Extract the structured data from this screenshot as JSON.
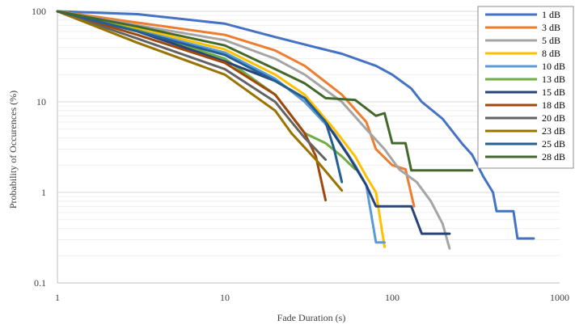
{
  "chart_data": {
    "type": "line",
    "title": "",
    "xlabel": "Fade Duration (s)",
    "ylabel": "Probability of Occurences (%)",
    "x_scale": "log",
    "y_scale": "log",
    "xlim": [
      1,
      1000
    ],
    "ylim": [
      0.1,
      100
    ],
    "x_ticks": [
      "1",
      "10",
      "100",
      "1000"
    ],
    "y_ticks": [
      "0.1",
      "1",
      "10",
      "100"
    ],
    "grid": true,
    "legend_position": "top-right",
    "series": [
      {
        "name": "1 dB",
        "color": "#4472C4",
        "points": [
          [
            1,
            100
          ],
          [
            3,
            93
          ],
          [
            10,
            73
          ],
          [
            20,
            52
          ],
          [
            30,
            43
          ],
          [
            50,
            34
          ],
          [
            80,
            25
          ],
          [
            100,
            20
          ],
          [
            130,
            14
          ],
          [
            150,
            10
          ],
          [
            200,
            6.5
          ],
          [
            260,
            3.5
          ],
          [
            300,
            2.6
          ],
          [
            350,
            1.5
          ],
          [
            400,
            1
          ],
          [
            420,
            0.62
          ],
          [
            530,
            0.62
          ],
          [
            560,
            0.31
          ],
          [
            700,
            0.31
          ]
        ]
      },
      {
        "name": "3 dB",
        "color": "#ED7D31",
        "points": [
          [
            1,
            100
          ],
          [
            3,
            75
          ],
          [
            10,
            55
          ],
          [
            20,
            37
          ],
          [
            30,
            25
          ],
          [
            50,
            12
          ],
          [
            70,
            6
          ],
          [
            80,
            3
          ],
          [
            100,
            2
          ],
          [
            120,
            1.8
          ],
          [
            135,
            0.7
          ]
        ]
      },
      {
        "name": "5 dB",
        "color": "#A5A5A5",
        "points": [
          [
            1,
            100
          ],
          [
            3,
            70
          ],
          [
            10,
            48
          ],
          [
            20,
            30
          ],
          [
            30,
            20
          ],
          [
            50,
            10
          ],
          [
            70,
            5
          ],
          [
            90,
            3
          ],
          [
            110,
            1.8
          ],
          [
            140,
            1.3
          ],
          [
            170,
            0.8
          ],
          [
            200,
            0.45
          ],
          [
            220,
            0.24
          ]
        ]
      },
      {
        "name": "8 dB",
        "color": "#FFC000",
        "points": [
          [
            1,
            100
          ],
          [
            3,
            65
          ],
          [
            10,
            38
          ],
          [
            20,
            20
          ],
          [
            30,
            12
          ],
          [
            45,
            5
          ],
          [
            60,
            2.5
          ],
          [
            70,
            1.5
          ],
          [
            80,
            1
          ],
          [
            90,
            0.25
          ]
        ]
      },
      {
        "name": "10 dB",
        "color": "#5B9BD5",
        "points": [
          [
            1,
            100
          ],
          [
            3,
            62
          ],
          [
            10,
            35
          ],
          [
            20,
            18
          ],
          [
            30,
            10
          ],
          [
            45,
            4.5
          ],
          [
            60,
            2
          ],
          [
            70,
            1.2
          ],
          [
            80,
            0.28
          ],
          [
            90,
            0.28
          ]
        ]
      },
      {
        "name": "13 dB",
        "color": "#70AD47",
        "points": [
          [
            1,
            100
          ],
          [
            3,
            62
          ],
          [
            10,
            30
          ],
          [
            20,
            12
          ],
          [
            25,
            7
          ],
          [
            30,
            4.5
          ],
          [
            40,
            3.5
          ],
          [
            50,
            2.5
          ],
          [
            60,
            1.8
          ]
        ]
      },
      {
        "name": "15 dB",
        "color": "#264478",
        "points": [
          [
            1,
            100
          ],
          [
            3,
            60
          ],
          [
            10,
            28
          ],
          [
            20,
            17
          ],
          [
            30,
            11
          ],
          [
            40,
            6
          ],
          [
            55,
            2.5
          ],
          [
            70,
            1.2
          ],
          [
            80,
            0.7
          ],
          [
            130,
            0.7
          ],
          [
            150,
            0.35
          ],
          [
            220,
            0.35
          ]
        ]
      },
      {
        "name": "18 dB",
        "color": "#9E480E",
        "points": [
          [
            1,
            100
          ],
          [
            3,
            55
          ],
          [
            10,
            27
          ],
          [
            20,
            12
          ],
          [
            25,
            7
          ],
          [
            30,
            4.5
          ],
          [
            35,
            2.5
          ],
          [
            40,
            0.82
          ]
        ]
      },
      {
        "name": "20 dB",
        "color": "#636363",
        "points": [
          [
            1,
            100
          ],
          [
            3,
            50
          ],
          [
            10,
            23
          ],
          [
            20,
            10
          ],
          [
            25,
            6
          ],
          [
            30,
            4
          ],
          [
            40,
            2.3
          ]
        ]
      },
      {
        "name": "23 dB",
        "color": "#997300",
        "points": [
          [
            1,
            100
          ],
          [
            3,
            45
          ],
          [
            10,
            20
          ],
          [
            20,
            8
          ],
          [
            25,
            4.5
          ],
          [
            35,
            2.3
          ],
          [
            50,
            1.05
          ]
        ]
      },
      {
        "name": "25 dB",
        "color": "#255E91",
        "points": [
          [
            1,
            100
          ],
          [
            3,
            60
          ],
          [
            10,
            33
          ],
          [
            20,
            17
          ],
          [
            30,
            11
          ],
          [
            40,
            6
          ],
          [
            45,
            3
          ],
          [
            50,
            1.3
          ]
        ]
      },
      {
        "name": "28 dB",
        "color": "#43682B",
        "points": [
          [
            1,
            100
          ],
          [
            3,
            68
          ],
          [
            10,
            42
          ],
          [
            20,
            23
          ],
          [
            30,
            16
          ],
          [
            40,
            11
          ],
          [
            60,
            10.5
          ],
          [
            80,
            7
          ],
          [
            90,
            7.5
          ],
          [
            100,
            3.5
          ],
          [
            120,
            3.5
          ],
          [
            130,
            1.75
          ],
          [
            300,
            1.75
          ]
        ]
      }
    ]
  }
}
